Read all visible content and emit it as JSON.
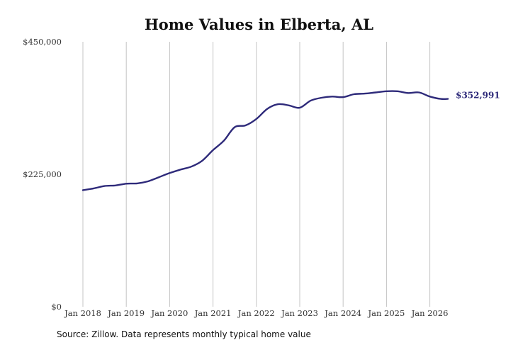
{
  "chart_data": {
    "type": "line",
    "title": "Home Values in Elberta, AL",
    "xlabel": "",
    "ylabel": "",
    "x_ticks": [
      "Jan 2018",
      "Jan 2019",
      "Jan 2020",
      "Jan 2021",
      "Jan 2022",
      "Jan 2023",
      "Jan 2024",
      "Jan 2025",
      "Jan 2026"
    ],
    "y_ticks": [
      "$0",
      "$225,000",
      "$450,000"
    ],
    "ylim": [
      0,
      450000
    ],
    "xlim": [
      "2018-01",
      "2026-06"
    ],
    "grid": "vertical",
    "line_color": "#2e2a7a",
    "end_label": "$352,991",
    "series": [
      {
        "x": [
          "2018-01",
          "2018-04",
          "2018-07",
          "2018-10",
          "2019-01",
          "2019-04",
          "2019-07",
          "2019-10",
          "2020-01",
          "2020-04",
          "2020-07",
          "2020-10",
          "2021-01",
          "2021-04",
          "2021-07",
          "2021-10",
          "2022-01",
          "2022-04",
          "2022-07",
          "2022-10",
          "2023-01",
          "2023-04",
          "2023-07",
          "2023-10",
          "2024-01",
          "2024-04",
          "2024-07",
          "2024-10",
          "2025-01",
          "2025-04",
          "2025-07",
          "2025-10",
          "2026-01",
          "2026-04",
          "2026-06"
        ],
        "values": [
          198000,
          201000,
          205000,
          206000,
          209000,
          209500,
          213000,
          220000,
          227000,
          233000,
          238000,
          248000,
          266000,
          282000,
          305000,
          308000,
          319000,
          336000,
          344000,
          342000,
          338000,
          350000,
          355000,
          357000,
          356000,
          361000,
          362000,
          364000,
          366000,
          366000,
          363000,
          364000,
          357000,
          353000,
          352991
        ]
      }
    ]
  },
  "source_text": "Source: Zillow. Data represents monthly typical home value"
}
